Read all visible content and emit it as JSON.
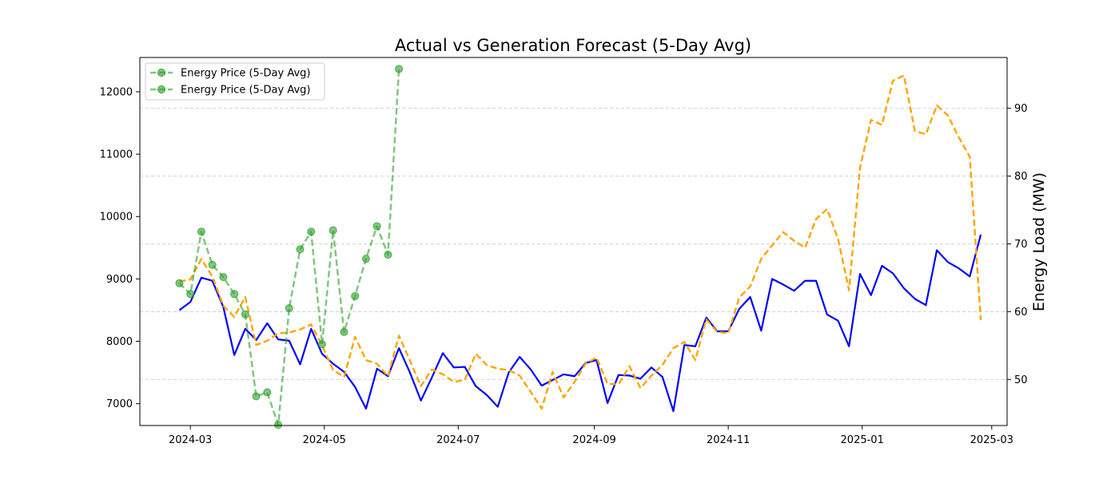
{
  "chart_data": {
    "type": "line",
    "title": "Actual vs Generation Forecast (5-Day Avg)",
    "xlabel": "",
    "ylabel_left": "",
    "ylabel_right": "Energy Load (MW)",
    "x_ticks": [
      "2024-03",
      "2024-05",
      "2024-07",
      "2024-09",
      "2024-11",
      "2025-01",
      "2025-03"
    ],
    "x_range": [
      "2024-02-07",
      "2025-03-08"
    ],
    "ylim_left": [
      6650,
      12550
    ],
    "y_ticks_left": [
      7000,
      8000,
      9000,
      10000,
      11000,
      12000
    ],
    "ylim_right": [
      43.2,
      97.5
    ],
    "y_ticks_right": [
      50,
      60,
      70,
      80,
      90
    ],
    "grid": "horizontal dashed, right axis",
    "legend_position": "upper left",
    "legend_entries": [
      "Energy Price (5-Day Avg)",
      "Energy Price (5-Day Avg)"
    ],
    "colors": {
      "actual": "#0000ff",
      "forecast": "#ffa500",
      "price": "#2ca02c"
    },
    "series": [
      {
        "axis": "left",
        "style": "solid",
        "color": "#0000ff",
        "x": [
          "2024-02-25",
          "2024-03-01",
          "2024-03-06",
          "2024-03-11",
          "2024-03-16",
          "2024-03-21",
          "2024-03-26",
          "2024-03-31",
          "2024-04-05",
          "2024-04-10",
          "2024-04-15",
          "2024-04-20",
          "2024-04-25",
          "2024-04-30",
          "2024-05-05",
          "2024-05-10",
          "2024-05-15",
          "2024-05-20",
          "2024-05-25",
          "2024-05-30",
          "2024-06-04",
          "2024-06-09",
          "2024-06-14",
          "2024-06-19",
          "2024-06-24",
          "2024-06-29",
          "2024-07-04",
          "2024-07-09",
          "2024-07-14",
          "2024-07-19",
          "2024-07-24",
          "2024-07-29",
          "2024-08-03",
          "2024-08-08",
          "2024-08-13",
          "2024-08-18",
          "2024-08-23",
          "2024-08-28",
          "2024-09-02",
          "2024-09-07",
          "2024-09-12",
          "2024-09-17",
          "2024-09-22",
          "2024-09-27",
          "2024-10-02",
          "2024-10-07",
          "2024-10-12",
          "2024-10-17",
          "2024-10-22",
          "2024-10-27",
          "2024-11-01",
          "2024-11-06",
          "2024-11-11",
          "2024-11-16",
          "2024-11-21",
          "2024-11-26",
          "2024-12-01",
          "2024-12-06",
          "2024-12-11",
          "2024-12-16",
          "2024-12-21",
          "2024-12-26",
          "2024-12-31",
          "2025-01-05",
          "2025-01-10",
          "2025-01-15",
          "2025-01-20",
          "2025-01-25",
          "2025-01-30",
          "2025-02-04",
          "2025-02-09",
          "2025-02-14",
          "2025-02-19",
          "2025-02-24"
        ],
        "y": [
          8500,
          8630,
          9020,
          8970,
          8550,
          7780,
          8200,
          8020,
          8290,
          8030,
          8010,
          7630,
          8200,
          7800,
          7640,
          7510,
          7270,
          6920,
          7560,
          7440,
          7890,
          7500,
          7050,
          7420,
          7810,
          7580,
          7590,
          7280,
          7140,
          6950,
          7500,
          7750,
          7550,
          7290,
          7380,
          7470,
          7440,
          7650,
          7700,
          7010,
          7460,
          7450,
          7400,
          7580,
          7430,
          6880,
          7940,
          7920,
          8380,
          8160,
          8160,
          8520,
          8710,
          8170,
          9000,
          8910,
          8810,
          8970,
          8970,
          8430,
          8330,
          7920,
          9080,
          8740,
          9210,
          9090,
          8850,
          8680,
          8580,
          9460,
          9270,
          9170,
          9040,
          9710
        ]
      },
      {
        "axis": "left",
        "style": "dashed",
        "color": "#ffa500",
        "x": [
          "2024-02-25",
          "2024-03-01",
          "2024-03-06",
          "2024-03-11",
          "2024-03-16",
          "2024-03-21",
          "2024-03-26",
          "2024-03-31",
          "2024-04-05",
          "2024-04-10",
          "2024-04-15",
          "2024-04-20",
          "2024-04-25",
          "2024-04-30",
          "2024-05-05",
          "2024-05-10",
          "2024-05-15",
          "2024-05-20",
          "2024-05-25",
          "2024-05-30",
          "2024-06-04",
          "2024-06-09",
          "2024-06-14",
          "2024-06-19",
          "2024-06-24",
          "2024-06-29",
          "2024-07-04",
          "2024-07-09",
          "2024-07-14",
          "2024-07-19",
          "2024-07-24",
          "2024-07-29",
          "2024-08-03",
          "2024-08-08",
          "2024-08-13",
          "2024-08-18",
          "2024-08-23",
          "2024-08-28",
          "2024-09-02",
          "2024-09-07",
          "2024-09-12",
          "2024-09-17",
          "2024-09-22",
          "2024-09-27",
          "2024-10-02",
          "2024-10-07",
          "2024-10-12",
          "2024-10-17",
          "2024-10-22",
          "2024-10-27",
          "2024-11-01",
          "2024-11-06",
          "2024-11-11",
          "2024-11-16",
          "2024-11-21",
          "2024-11-26",
          "2024-12-01",
          "2024-12-06",
          "2024-12-11",
          "2024-12-16",
          "2024-12-21",
          "2024-12-26",
          "2024-12-31",
          "2025-01-05",
          "2025-01-10",
          "2025-01-15",
          "2025-01-20",
          "2025-01-25",
          "2025-01-30",
          "2025-02-04",
          "2025-02-09",
          "2025-02-14",
          "2025-02-19",
          "2025-02-24"
        ],
        "y": [
          8960,
          8990,
          9320,
          9040,
          8570,
          8390,
          8710,
          7940,
          8010,
          8130,
          8140,
          8190,
          8270,
          7930,
          7540,
          7430,
          8070,
          7700,
          7640,
          7440,
          8090,
          7690,
          7280,
          7550,
          7470,
          7350,
          7380,
          7800,
          7620,
          7560,
          7540,
          7450,
          7190,
          6920,
          7510,
          7100,
          7350,
          7640,
          7740,
          7320,
          7310,
          7600,
          7250,
          7450,
          7620,
          7890,
          7990,
          7700,
          8350,
          8150,
          8130,
          8700,
          8880,
          9320,
          9540,
          9750,
          9610,
          9500,
          9960,
          10120,
          9640,
          8820,
          10780,
          11550,
          11470,
          12180,
          12260,
          11370,
          11320,
          11780,
          11620,
          11270,
          10960,
          8340
        ]
      },
      {
        "axis": "right",
        "style": "dashed-markers",
        "color": "#2ca02c",
        "x": [
          "2024-02-25",
          "2024-03-01",
          "2024-03-06",
          "2024-03-11",
          "2024-03-16",
          "2024-03-21",
          "2024-03-26",
          "2024-03-31",
          "2024-04-05",
          "2024-04-10",
          "2024-04-15",
          "2024-04-20",
          "2024-04-25",
          "2024-04-30",
          "2024-05-05",
          "2024-05-10",
          "2024-05-15",
          "2024-05-20",
          "2024-05-25",
          "2024-05-30",
          "2024-06-04"
        ],
        "y": [
          64.2,
          62.6,
          71.8,
          66.9,
          65.1,
          62.6,
          59.6,
          47.5,
          48.1,
          43.3,
          60.5,
          69.2,
          71.8,
          55.2,
          72.0,
          57.0,
          62.3,
          67.8,
          72.6,
          68.4,
          95.8
        ]
      }
    ]
  }
}
